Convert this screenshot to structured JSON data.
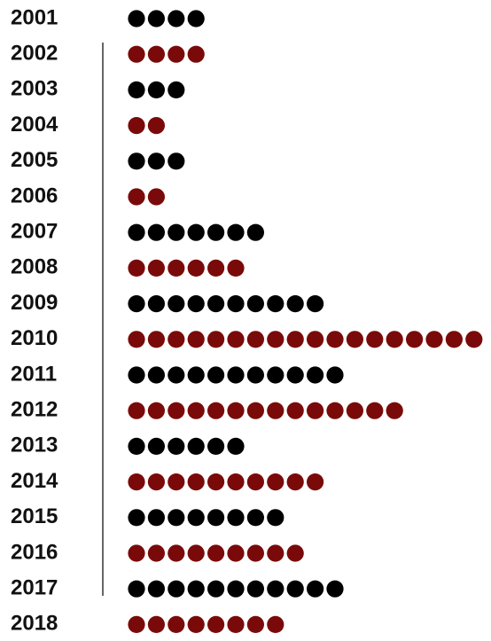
{
  "chart_data": {
    "type": "dot",
    "categories": [
      "2001",
      "2002",
      "2003",
      "2004",
      "2005",
      "2006",
      "2007",
      "2008",
      "2009",
      "2010",
      "2011",
      "2012",
      "2013",
      "2014",
      "2015",
      "2016",
      "2017",
      "2018"
    ],
    "values": [
      4,
      4,
      3,
      2,
      3,
      2,
      7,
      6,
      10,
      18,
      11,
      14,
      6,
      10,
      8,
      9,
      11,
      8
    ],
    "colors": [
      "#000000",
      "#7a0a0a",
      "#000000",
      "#7a0a0a",
      "#000000",
      "#7a0a0a",
      "#000000",
      "#7a0a0a",
      "#000000",
      "#7a0a0a",
      "#000000",
      "#7a0a0a",
      "#000000",
      "#7a0a0a",
      "#000000",
      "#7a0a0a",
      "#000000",
      "#7a0a0a"
    ]
  }
}
